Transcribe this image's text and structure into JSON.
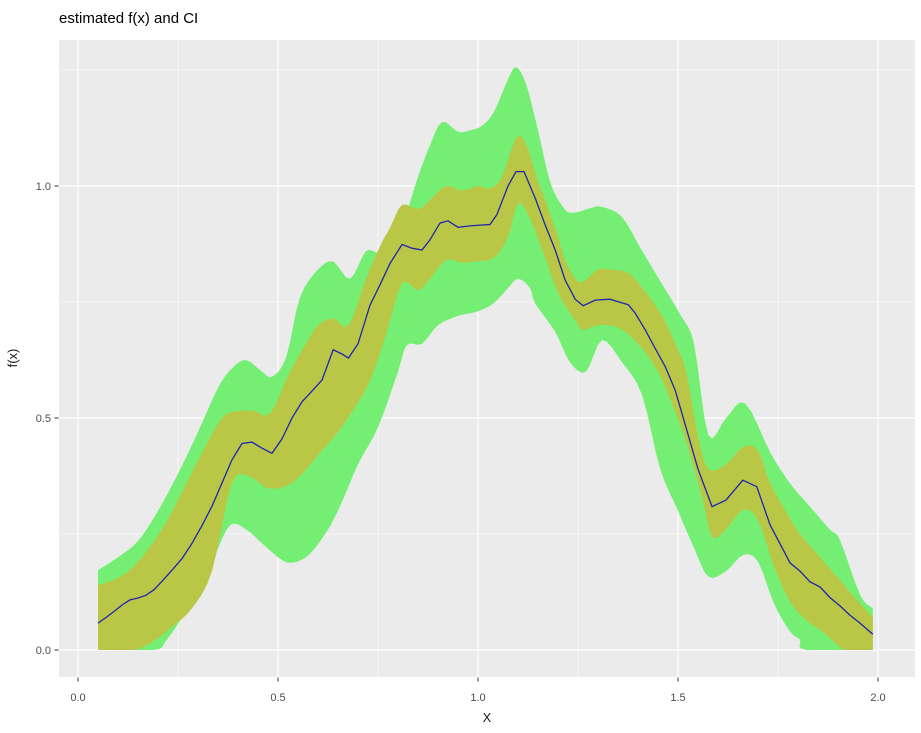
{
  "chart_data": {
    "type": "area",
    "title": "estimated f(x) and CI",
    "xlabel": "X",
    "ylabel": "f(x)",
    "legend": "none",
    "grid": "on",
    "x_axis": {
      "tick_values": [
        0.0,
        0.5,
        1.0,
        1.5,
        2.0
      ],
      "tick_labels": [
        "0.0",
        "0.5",
        "1.0",
        "1.5",
        "2.0"
      ],
      "minor_ticks": [
        0.25,
        0.75,
        1.25,
        1.75
      ],
      "range": [
        -0.048,
        2.093
      ]
    },
    "y_axis": {
      "tick_values": [
        0.0,
        0.5,
        1.0
      ],
      "tick_labels": [
        "0.0",
        "0.5",
        "1.0"
      ],
      "minor_ticks": [
        0.25,
        0.75,
        1.25
      ],
      "range": [
        -0.058,
        1.319
      ]
    },
    "series": [
      {
        "name": "estimate-line",
        "x": [
          0.05,
          0.07,
          0.09,
          0.11,
          0.13,
          0.15,
          0.17,
          0.19,
          0.21,
          0.235,
          0.26,
          0.285,
          0.31,
          0.335,
          0.36,
          0.385,
          0.41,
          0.435,
          0.46,
          0.485,
          0.51,
          0.535,
          0.56,
          0.585,
          0.61,
          0.638,
          0.66,
          0.676,
          0.7,
          0.73,
          0.755,
          0.78,
          0.81,
          0.835,
          0.86,
          0.88,
          0.905,
          0.925,
          0.95,
          0.98,
          1.01,
          1.03,
          1.047,
          1.075,
          1.095,
          1.115,
          1.143,
          1.168,
          1.193,
          1.218,
          1.243,
          1.263,
          1.293,
          1.33,
          1.376,
          1.393,
          1.418,
          1.443,
          1.468,
          1.493,
          1.52,
          1.55,
          1.585,
          1.62,
          1.662,
          1.697,
          1.73,
          1.78,
          1.805,
          1.83,
          1.855,
          1.88,
          1.905,
          1.93,
          1.955,
          1.987
        ],
        "y": [
          0.058,
          0.07,
          0.083,
          0.097,
          0.108,
          0.112,
          0.118,
          0.13,
          0.148,
          0.172,
          0.197,
          0.23,
          0.268,
          0.31,
          0.36,
          0.41,
          0.445,
          0.448,
          0.435,
          0.424,
          0.455,
          0.5,
          0.535,
          0.558,
          0.582,
          0.647,
          0.638,
          0.629,
          0.66,
          0.743,
          0.787,
          0.833,
          0.874,
          0.866,
          0.862,
          0.884,
          0.92,
          0.925,
          0.911,
          0.914,
          0.916,
          0.917,
          0.938,
          1.0,
          1.031,
          1.031,
          0.974,
          0.916,
          0.862,
          0.797,
          0.756,
          0.742,
          0.754,
          0.756,
          0.744,
          0.726,
          0.69,
          0.65,
          0.611,
          0.56,
          0.48,
          0.39,
          0.309,
          0.323,
          0.366,
          0.352,
          0.27,
          0.188,
          0.17,
          0.147,
          0.136,
          0.113,
          0.095,
          0.075,
          0.058,
          0.034
        ]
      }
    ],
    "bands": {
      "outer": {
        "name": "outer-ci-band",
        "upper_x": [
          0.05,
          0.1,
          0.15,
          0.2,
          0.25,
          0.3,
          0.35,
          0.385,
          0.42,
          0.46,
          0.485,
          0.52,
          0.555,
          0.6,
          0.638,
          0.68,
          0.72,
          0.755,
          0.805,
          0.85,
          0.88,
          0.91,
          0.95,
          0.98,
          1.01,
          1.04,
          1.075,
          1.095,
          1.12,
          1.15,
          1.18,
          1.209,
          1.234,
          1.284,
          1.309,
          1.359,
          1.409,
          1.459,
          1.509,
          1.54,
          1.576,
          1.62,
          1.668,
          1.73,
          1.78,
          1.83,
          1.88,
          1.905,
          1.955,
          1.987
        ],
        "upper_y": [
          0.172,
          0.2,
          0.235,
          0.3,
          0.38,
          0.47,
          0.565,
          0.607,
          0.625,
          0.6,
          0.589,
          0.63,
          0.76,
          0.82,
          0.837,
          0.8,
          0.86,
          0.858,
          0.905,
          1.02,
          1.088,
          1.138,
          1.117,
          1.12,
          1.13,
          1.16,
          1.23,
          1.256,
          1.22,
          1.12,
          1.01,
          0.959,
          0.942,
          0.953,
          0.955,
          0.934,
          0.862,
          0.79,
          0.718,
          0.66,
          0.463,
          0.5,
          0.532,
          0.427,
          0.359,
          0.309,
          0.259,
          0.237,
          0.119,
          0.09
        ],
        "lower_x": [
          0.05,
          0.19,
          0.22,
          0.26,
          0.3,
          0.34,
          0.38,
          0.42,
          0.46,
          0.5,
          0.53,
          0.57,
          0.61,
          0.65,
          0.7,
          0.75,
          0.8,
          0.822,
          0.86,
          0.9,
          0.95,
          1.0,
          1.04,
          1.075,
          1.1,
          1.13,
          1.143,
          1.193,
          1.23,
          1.27,
          1.31,
          1.36,
          1.41,
          1.455,
          1.5,
          1.54,
          1.576,
          1.62,
          1.663,
          1.7,
          1.74,
          1.78,
          1.805,
          1.82,
          1.987
        ],
        "lower_y": [
          0.0,
          0.0,
          0.02,
          0.07,
          0.13,
          0.2,
          0.269,
          0.26,
          0.23,
          0.2,
          0.188,
          0.2,
          0.24,
          0.3,
          0.4,
          0.48,
          0.6,
          0.657,
          0.66,
          0.7,
          0.72,
          0.73,
          0.748,
          0.78,
          0.8,
          0.78,
          0.747,
          0.686,
          0.62,
          0.6,
          0.668,
          0.62,
          0.55,
          0.392,
          0.3,
          0.22,
          0.158,
          0.17,
          0.205,
          0.19,
          0.1,
          0.04,
          0.022,
          0.0,
          0.0
        ]
      },
      "inner": {
        "name": "inner-ci-band",
        "upper_x": [
          0.05,
          0.1,
          0.15,
          0.21,
          0.26,
          0.31,
          0.36,
          0.4,
          0.44,
          0.48,
          0.53,
          0.57,
          0.6,
          0.638,
          0.676,
          0.72,
          0.755,
          0.78,
          0.81,
          0.85,
          0.88,
          0.92,
          0.96,
          1.0,
          1.03,
          1.06,
          1.095,
          1.12,
          1.15,
          1.168,
          1.2,
          1.218,
          1.243,
          1.263,
          1.3,
          1.33,
          1.376,
          1.42,
          1.46,
          1.493,
          1.52,
          1.55,
          1.576,
          1.62,
          1.663,
          1.7,
          1.73,
          1.78,
          1.805,
          1.855,
          1.905,
          1.955,
          1.987
        ],
        "upper_y": [
          0.14,
          0.155,
          0.19,
          0.26,
          0.34,
          0.425,
          0.5,
          0.515,
          0.515,
          0.51,
          0.6,
          0.66,
          0.7,
          0.715,
          0.7,
          0.8,
          0.87,
          0.91,
          0.959,
          0.95,
          0.97,
          1.0,
          0.99,
          1.0,
          0.995,
          1.02,
          1.103,
          1.09,
          1.01,
          0.97,
          0.89,
          0.84,
          0.8,
          0.794,
          0.82,
          0.82,
          0.812,
          0.77,
          0.72,
          0.66,
          0.6,
          0.46,
          0.39,
          0.4,
          0.438,
          0.43,
          0.36,
          0.284,
          0.25,
          0.2,
          0.15,
          0.1,
          0.07
        ],
        "lower_x": [
          0.05,
          0.14,
          0.19,
          0.235,
          0.285,
          0.335,
          0.385,
          0.43,
          0.47,
          0.51,
          0.55,
          0.6,
          0.65,
          0.69,
          0.73,
          0.77,
          0.81,
          0.85,
          0.88,
          0.92,
          0.96,
          1.0,
          1.04,
          1.075,
          1.1,
          1.13,
          1.168,
          1.2,
          1.243,
          1.263,
          1.3,
          1.35,
          1.4,
          1.45,
          1.49,
          1.52,
          1.56,
          1.585,
          1.62,
          1.663,
          1.7,
          1.74,
          1.78,
          1.82,
          1.86,
          1.9,
          1.92,
          1.987
        ],
        "lower_y": [
          0.0,
          0.0,
          0.02,
          0.05,
          0.09,
          0.17,
          0.36,
          0.373,
          0.35,
          0.35,
          0.37,
          0.42,
          0.47,
          0.52,
          0.58,
          0.68,
          0.79,
          0.775,
          0.8,
          0.84,
          0.835,
          0.838,
          0.845,
          0.89,
          0.962,
          0.93,
          0.845,
          0.77,
          0.71,
          0.69,
          0.7,
          0.695,
          0.66,
          0.6,
          0.52,
          0.45,
          0.33,
          0.244,
          0.26,
          0.302,
          0.28,
          0.18,
          0.104,
          0.065,
          0.04,
          0.01,
          0.0,
          0.0
        ]
      }
    },
    "colors": {
      "panel_background": "#ebebeb",
      "gridline": "#ffffff",
      "outer_band": "#74ef74",
      "inner_band": "#bac746",
      "line": "#1f25b0",
      "tick_mark": "#333333",
      "tick_text": "#4d4d4d",
      "title_text": "#000000",
      "axis_title_text": "#1a1a1a"
    }
  }
}
